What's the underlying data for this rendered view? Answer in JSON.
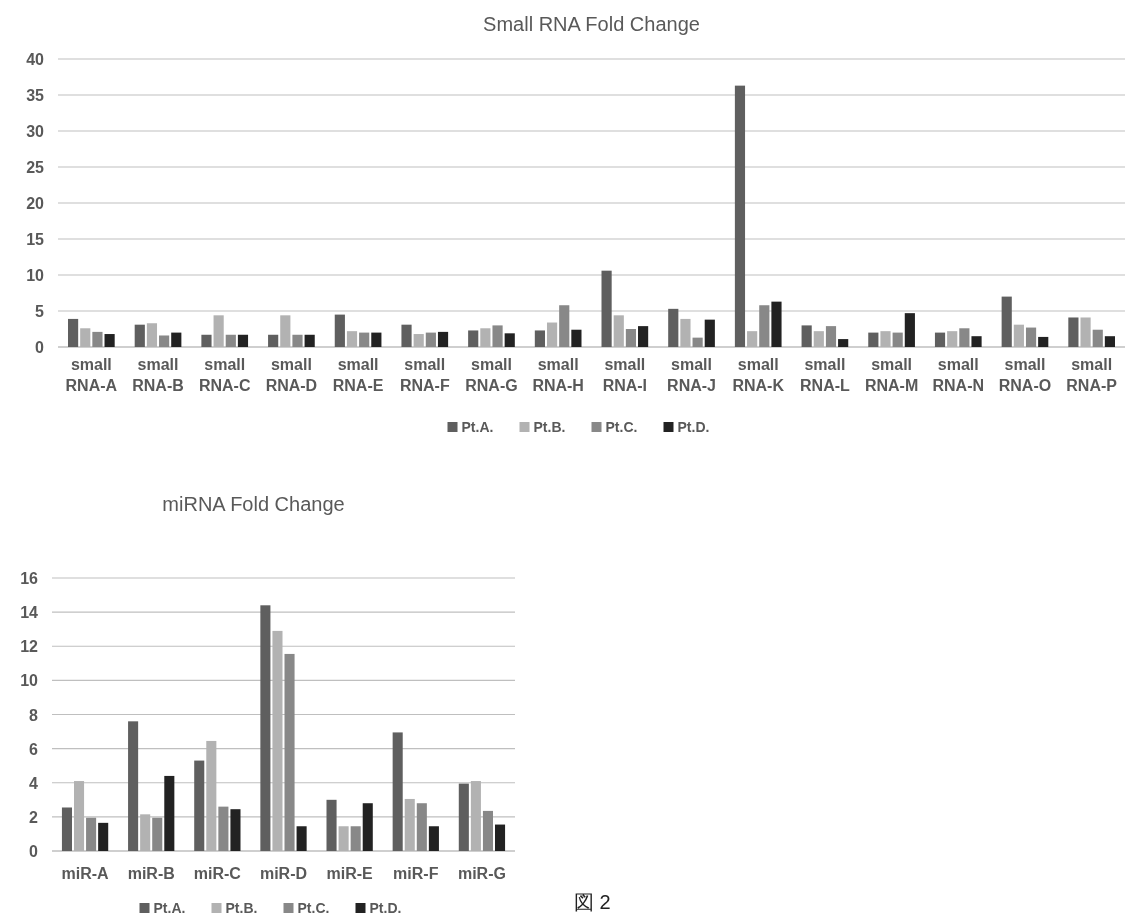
{
  "chart_data": [
    {
      "type": "bar",
      "title": "Small RNA Fold Change",
      "categories": [
        "small RNA-A",
        "small RNA-B",
        "small RNA-C",
        "small RNA-D",
        "small RNA-E",
        "small RNA-F",
        "small RNA-G",
        "small RNA-H",
        "small RNA-I",
        "small RNA-J",
        "small RNA-K",
        "small RNA-L",
        "small RNA-M",
        "small RNA-N",
        "small RNA-O",
        "small RNA-P"
      ],
      "series": [
        {
          "name": "Pt.A.",
          "color": "#5f5f5f",
          "values": [
            3.9,
            3.1,
            1.7,
            1.7,
            4.5,
            3.1,
            2.3,
            2.3,
            10.6,
            5.3,
            36.3,
            3.0,
            2.0,
            2.0,
            7.0,
            4.1
          ]
        },
        {
          "name": "Pt.B.",
          "color": "#b2b2b2",
          "values": [
            2.6,
            3.3,
            4.4,
            4.4,
            2.2,
            1.8,
            2.6,
            3.4,
            4.4,
            3.9,
            2.2,
            2.2,
            2.2,
            2.2,
            3.1,
            4.1
          ]
        },
        {
          "name": "Pt.C.",
          "color": "#888888",
          "values": [
            2.1,
            1.6,
            1.7,
            1.7,
            2.0,
            2.0,
            3.0,
            5.8,
            2.5,
            1.3,
            5.8,
            2.9,
            2.0,
            2.6,
            2.7,
            2.4
          ]
        },
        {
          "name": "Pt.D.",
          "color": "#222222",
          "values": [
            1.8,
            2.0,
            1.7,
            1.7,
            2.0,
            2.1,
            1.9,
            2.4,
            2.9,
            3.8,
            6.3,
            1.1,
            4.7,
            1.5,
            1.4,
            1.5
          ]
        }
      ],
      "ylim": [
        0,
        40
      ],
      "yticks": [
        0,
        5,
        10,
        15,
        20,
        25,
        30,
        35,
        40
      ],
      "grid": "y",
      "legend": "bottom"
    },
    {
      "type": "bar",
      "title": "miRNA Fold Change",
      "categories": [
        "miR-A",
        "miR-B",
        "miR-C",
        "miR-D",
        "miR-E",
        "miR-F",
        "miR-G"
      ],
      "series": [
        {
          "name": "Pt.A.",
          "color": "#5f5f5f",
          "values": [
            2.55,
            7.6,
            5.3,
            14.4,
            3.0,
            6.95,
            3.95
          ]
        },
        {
          "name": "Pt.B.",
          "color": "#b2b2b2",
          "values": [
            4.1,
            2.15,
            6.45,
            12.9,
            1.45,
            3.05,
            4.1
          ]
        },
        {
          "name": "Pt.C.",
          "color": "#888888",
          "values": [
            1.95,
            1.95,
            2.6,
            11.55,
            1.45,
            2.8,
            2.35
          ]
        },
        {
          "name": "Pt.D.",
          "color": "#222222",
          "values": [
            1.65,
            4.4,
            2.45,
            1.45,
            2.8,
            1.45,
            1.55
          ]
        }
      ],
      "ylim": [
        0,
        16
      ],
      "yticks": [
        0,
        2,
        4,
        6,
        8,
        10,
        12,
        14,
        16
      ],
      "grid": "y",
      "legend": "bottom",
      "annotations": [
        "図 2"
      ]
    }
  ]
}
